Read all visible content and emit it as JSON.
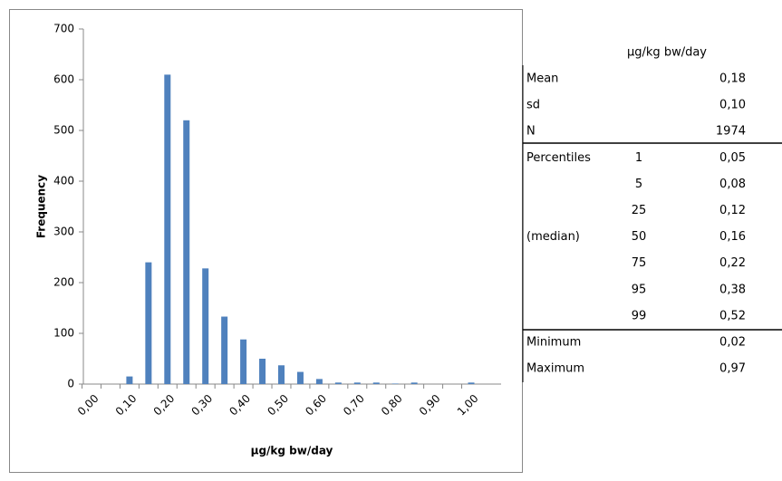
{
  "chart_data": {
    "type": "bar",
    "ylabel": "Frequency",
    "xlabel": "µg/kg bw/day",
    "categories": [
      "0,00",
      null,
      "0,10",
      null,
      "0,20",
      null,
      "0,30",
      null,
      "0,40",
      null,
      "0,50",
      null,
      "0,60",
      null,
      "0,70",
      null,
      "0,80",
      null,
      "0,90",
      null,
      "1,00"
    ],
    "values": [
      0,
      0,
      15,
      240,
      610,
      520,
      228,
      133,
      88,
      50,
      37,
      24,
      10,
      3,
      3,
      3,
      1,
      3,
      0,
      0,
      3
    ],
    "color": "#4f81bd",
    "ylim": [
      0,
      700
    ],
    "yticks": [
      0,
      100,
      200,
      300,
      400,
      500,
      600,
      700
    ],
    "grid": false
  },
  "table": {
    "header": "µg/kg bw/day",
    "rows": [
      {
        "label": "Mean",
        "value": "0,18"
      },
      {
        "label": "sd",
        "value": "0,10"
      },
      {
        "label": "N",
        "value": 1974
      },
      {
        "label": "Percentiles",
        "percentile": 1,
        "value": "0,05"
      },
      {
        "percentile": 5,
        "value": "0,08"
      },
      {
        "percentile": 25,
        "value": "0,12"
      },
      {
        "label": "(median)",
        "percentile": 50,
        "value": "0,16"
      },
      {
        "percentile": 75,
        "value": "0,22"
      },
      {
        "percentile": 95,
        "value": "0,38"
      },
      {
        "percentile": 99,
        "value": "0,52"
      },
      {
        "label": "Minimum",
        "value": "0,02"
      },
      {
        "label": "Maximum",
        "value": "0,97"
      }
    ]
  }
}
